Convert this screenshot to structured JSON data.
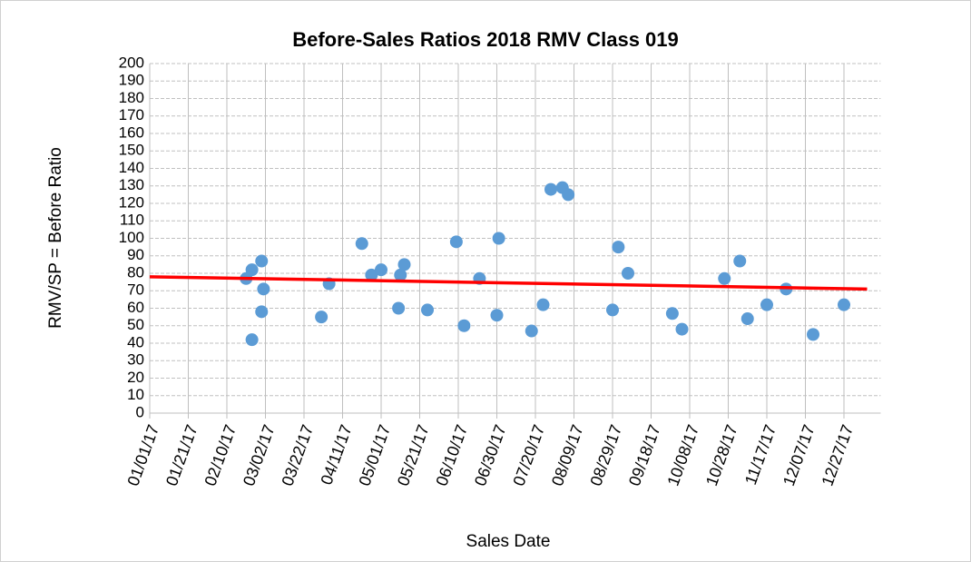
{
  "chart_data": {
    "type": "scatter",
    "title": "Before-Sales Ratios 2018 RMV Class 019",
    "x_label": "Sales Date",
    "y_label": "RMV/SP = Before Ratio",
    "series": [
      {
        "color": "#5b9bd5",
        "x": [
          "02/20/17",
          "02/23/17",
          "02/23/17",
          "02/28/17",
          "03/01/17",
          "02/28/17",
          "03/31/17",
          "04/04/17",
          "04/21/17",
          "04/26/17",
          "05/01/17",
          "05/10/17",
          "05/11/17",
          "05/13/17",
          "05/25/17",
          "06/09/17",
          "06/13/17",
          "06/21/17",
          "06/30/17",
          "07/01/17",
          "07/18/17",
          "07/24/17",
          "07/28/17",
          "08/03/17",
          "08/06/17",
          "08/29/17",
          "09/01/17",
          "09/06/17",
          "09/29/17",
          "10/04/17",
          "10/26/17",
          "11/03/17",
          "11/07/17",
          "11/17/17",
          "11/27/17",
          "12/11/17",
          "12/27/17"
        ],
        "values": [
          77,
          82,
          42,
          87,
          71,
          58,
          55,
          74,
          97,
          79,
          82,
          60,
          79,
          85,
          59,
          98,
          50,
          77,
          56,
          100,
          47,
          62,
          128,
          129,
          125,
          59,
          95,
          80,
          57,
          48,
          77,
          87,
          54,
          62,
          71,
          45,
          62
        ]
      }
    ],
    "trendline": {
      "color": "#ff0000",
      "x": [
        "01/01/17",
        "01/08/18"
      ],
      "values": [
        78,
        71
      ]
    },
    "xlim": [
      "01/01/17",
      "01/15/18"
    ],
    "xticks": [
      "01/01/17",
      "01/21/17",
      "02/10/17",
      "03/02/17",
      "03/22/17",
      "04/11/17",
      "05/01/17",
      "05/21/17",
      "06/10/17",
      "06/30/17",
      "07/20/17",
      "08/09/17",
      "08/29/17",
      "09/18/17",
      "10/08/17",
      "10/28/17",
      "11/17/17",
      "12/07/17",
      "12/27/17"
    ],
    "ylim": [
      0,
      200
    ],
    "yticks": [
      0,
      10,
      20,
      30,
      40,
      50,
      60,
      70,
      80,
      90,
      100,
      110,
      120,
      130,
      140,
      150,
      160,
      170,
      180,
      190,
      200
    ],
    "grid": true
  }
}
